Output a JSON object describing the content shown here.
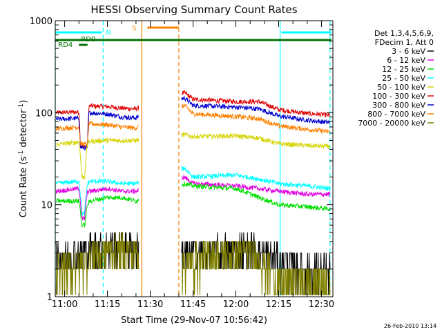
{
  "chart_data": {
    "type": "line",
    "title": "HESSI Observing Summary Count Rates",
    "xlabel": "Start Time (29-Nov-07 10:56:42)",
    "ylabel": "Count Rate (s⁻¹ detector⁻¹)",
    "ylabel_parts": {
      "base": "Count Rate (s",
      "sup1": "-1",
      "mid": " detector",
      "sup2": "-1",
      "end": ")"
    },
    "footer": "26-Feb-2010 13:14",
    "x_start": "10:56:42",
    "xlim": [
      "10:56:42",
      "12:34:00"
    ],
    "x_ticks": [
      "11:00",
      "11:15",
      "11:30",
      "11:45",
      "12:00",
      "12:15",
      "12:30"
    ],
    "y_scale": "log",
    "ylim": [
      1,
      1000
    ],
    "y_ticks": [
      1,
      10,
      100,
      1000
    ],
    "y_tick_labels": [
      "1",
      "10",
      "100",
      "1000"
    ],
    "legend": {
      "placement": "right",
      "header": [
        "Det 1,3,4,5,6,9,",
        "FDecim 1, Att 0"
      ],
      "entries": [
        {
          "label": "3 - 6 keV",
          "color": "#000000"
        },
        {
          "label": "6 - 12 keV",
          "color": "#e000e0"
        },
        {
          "label": "12 - 25 keV",
          "color": "#00e000"
        },
        {
          "label": "25 - 50 keV",
          "color": "#00ffff"
        },
        {
          "label": "50 - 100 keV",
          "color": "#d4d400"
        },
        {
          "label": "100 - 300 keV",
          "color": "#e00000"
        },
        {
          "label": "300 - 800 keV",
          "color": "#0000d0"
        },
        {
          "label": "800 - 7000 keV",
          "color": "#ff8000"
        },
        {
          "label": "7000 - 20000 keV",
          "color": "#808000"
        }
      ]
    },
    "flag_bars": [
      {
        "label": "N",
        "color": "#00ffff",
        "segments": [
          [
            "10:56:42",
            "11:13:00"
          ],
          [
            "12:16:00",
            "12:33:30"
          ]
        ]
      },
      {
        "label": "S",
        "color": "#ff8000",
        "segments": [
          [
            "11:29:00",
            "11:40:00"
          ]
        ]
      },
      {
        "label": "RD0",
        "color": "#007000",
        "segments": [
          [
            "10:56:42",
            "12:33:30"
          ]
        ]
      },
      {
        "label": "RD4",
        "color": "#007000",
        "segments": [
          [
            "11:05:00",
            "11:08:00"
          ]
        ]
      }
    ],
    "vertical_markers": [
      {
        "time": "10:56:42",
        "color": "#00ffff",
        "style": "solid"
      },
      {
        "time": "11:13:30",
        "color": "#00ffff",
        "style": "dashed"
      },
      {
        "time": "11:27:00",
        "color": "#ff8000",
        "style": "solid"
      },
      {
        "time": "11:40:00",
        "color": "#ff8000",
        "style": "dashed"
      },
      {
        "time": "12:15:30",
        "color": "#00ffff",
        "style": "solid"
      },
      {
        "time": "12:33:00",
        "color": "#00ffff",
        "style": "dashed"
      }
    ],
    "gap": [
      "11:26:00",
      "11:41:00"
    ],
    "series": [
      {
        "name": "100 - 300 keV",
        "color": "#e00000",
        "x": [
          "10:57",
          "11:05",
          "11:05:30",
          "11:08",
          "11:08:30",
          "11:15",
          "11:20",
          "11:25",
          "11:42",
          "11:45",
          "12:00",
          "12:08",
          "12:15",
          "12:25",
          "12:33"
        ],
        "y": [
          100,
          102,
          44,
          43,
          118,
          117,
          112,
          110,
          165,
          140,
          132,
          132,
          108,
          98,
          94
        ]
      },
      {
        "name": "300 - 800 keV",
        "color": "#0000d0",
        "x": [
          "10:57",
          "11:05",
          "11:05:30",
          "11:08",
          "11:08:30",
          "11:15",
          "11:20",
          "11:25",
          "11:42",
          "11:45",
          "12:00",
          "12:08",
          "12:15",
          "12:25",
          "12:33"
        ],
        "y": [
          85,
          87,
          42,
          41,
          100,
          97,
          90,
          88,
          145,
          120,
          115,
          110,
          92,
          83,
          78
        ]
      },
      {
        "name": "800 - 7000 keV",
        "color": "#ff8000",
        "x": [
          "10:57",
          "11:05",
          "11:05:30",
          "11:08",
          "11:08:30",
          "11:15",
          "11:20",
          "11:25",
          "11:42",
          "11:45",
          "12:00",
          "12:08",
          "12:15",
          "12:25",
          "12:33"
        ],
        "y": [
          67,
          70,
          46,
          45,
          76,
          74,
          70,
          68,
          120,
          97,
          91,
          86,
          72,
          66,
          62
        ]
      },
      {
        "name": "50 - 100 keV",
        "color": "#d4d400",
        "x": [
          "10:57",
          "11:05",
          "11:06",
          "11:07",
          "11:08",
          "11:09",
          "11:15",
          "11:20",
          "11:25",
          "11:42",
          "11:45",
          "12:00",
          "12:08",
          "12:15",
          "12:25",
          "12:33"
        ],
        "y": [
          45,
          48,
          20,
          20,
          46,
          49,
          50,
          50,
          50,
          58,
          55,
          56,
          53,
          46,
          44,
          43
        ]
      },
      {
        "name": "25 - 50 keV",
        "color": "#00ffff",
        "x": [
          "10:57",
          "11:05",
          "11:06",
          "11:07",
          "11:08",
          "11:09",
          "11:15",
          "11:20",
          "11:25",
          "11:42",
          "11:45",
          "12:00",
          "12:08",
          "12:15",
          "12:25",
          "12:33"
        ],
        "y": [
          17,
          18,
          8,
          8,
          17,
          18,
          18,
          17,
          17,
          25,
          20,
          21,
          19,
          17,
          16,
          15
        ]
      },
      {
        "name": "6 - 12 keV",
        "color": "#e000e0",
        "x": [
          "10:57",
          "11:05",
          "11:06",
          "11:07",
          "11:08",
          "11:09",
          "11:15",
          "11:20",
          "11:25",
          "11:42",
          "11:45",
          "12:00",
          "12:08",
          "12:15",
          "12:25",
          "12:33"
        ],
        "y": [
          14,
          15,
          7,
          7,
          14,
          14,
          15,
          14,
          14,
          20,
          17,
          16,
          15,
          14,
          13,
          13
        ]
      },
      {
        "name": "12 - 25 keV",
        "color": "#00e000",
        "x": [
          "10:57",
          "11:05",
          "11:06",
          "11:07",
          "11:08",
          "11:09",
          "11:15",
          "11:20",
          "11:25",
          "11:42",
          "11:45",
          "12:00",
          "12:08",
          "12:15",
          "12:25",
          "12:33"
        ],
        "y": [
          11,
          11,
          6,
          6,
          10,
          11,
          12,
          12,
          11,
          17,
          16,
          15,
          12,
          10,
          9.5,
          9
        ]
      },
      {
        "name": "3 - 6 keV",
        "color": "#000000",
        "x": [
          "10:57",
          "11:05",
          "11:10",
          "11:20",
          "11:25",
          "11:42",
          "11:50",
          "12:00",
          "12:05",
          "12:15",
          "12:25",
          "12:33"
        ],
        "y": [
          2.6,
          2.9,
          3.4,
          3.6,
          3.4,
          3.0,
          3.1,
          3.3,
          3.4,
          2.5,
          2.0,
          1.8
        ]
      },
      {
        "name": "7000 - 20000 keV",
        "color": "#808000",
        "x": [
          "10:57",
          "11:05",
          "11:10",
          "11:20",
          "11:25",
          "11:42",
          "11:50",
          "12:00",
          "12:05",
          "12:15",
          "12:25",
          "12:33"
        ],
        "y": [
          1.8,
          2.2,
          3.0,
          3.3,
          3.0,
          2.2,
          2.8,
          3.1,
          3.2,
          1.4,
          1.5,
          1.4
        ]
      }
    ]
  }
}
